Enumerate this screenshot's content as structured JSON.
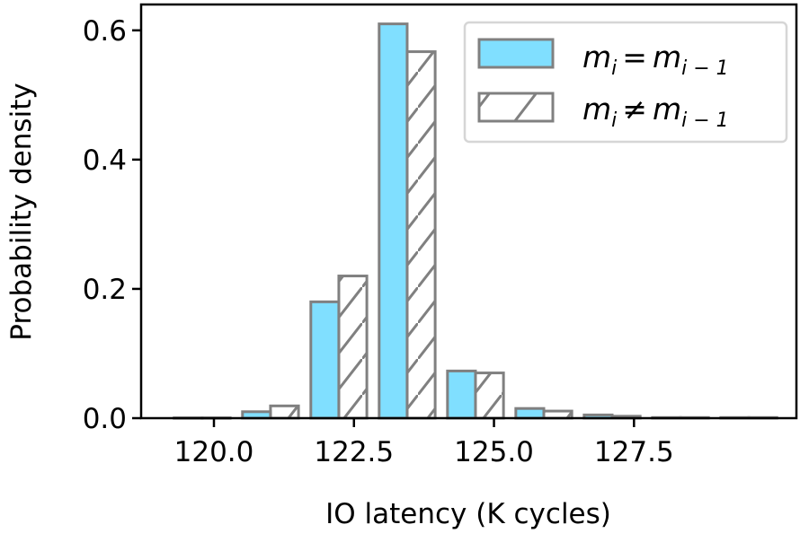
{
  "chart_data": {
    "type": "bar",
    "title": "",
    "xlabel": "IO latency (K cycles)",
    "ylabel": "Probability density",
    "x": [
      119.79,
      121.01,
      122.23,
      123.45,
      124.67,
      125.89,
      127.11,
      128.33,
      129.55
    ],
    "bar_width": 0.5,
    "series": [
      {
        "name": "m_i = m_{i-1}",
        "label_main": "m",
        "label_sub": "i",
        "label_op": "=",
        "label_sub2": "i − 1",
        "style": "solid",
        "color": "#80dfff",
        "edge": "#808080",
        "values": [
          0.0005,
          0.01,
          0.18,
          0.61,
          0.073,
          0.015,
          0.005,
          0.001,
          0.001
        ]
      },
      {
        "name": "m_i ≠ m_{i-1}",
        "label_main": "m",
        "label_sub": "i",
        "label_op": "≠",
        "label_sub2": "i − 1",
        "style": "hatched",
        "color": "#ffffff",
        "edge": "#808080",
        "values": [
          0.0005,
          0.019,
          0.22,
          0.567,
          0.07,
          0.011,
          0.003,
          0.001,
          0.001
        ]
      }
    ],
    "xticks": [
      120.0,
      122.5,
      125.0,
      127.5
    ],
    "xtick_labels": [
      "120.0",
      "122.5",
      "125.0",
      "127.5"
    ],
    "yticks": [
      0.0,
      0.2,
      0.4,
      0.6
    ],
    "ytick_labels": [
      "0.0",
      "0.2",
      "0.4",
      "0.6"
    ],
    "xlim": [
      118.7,
      130.4
    ],
    "ylim": [
      0,
      0.64
    ],
    "grid": false,
    "legend_placement": "top-right"
  }
}
